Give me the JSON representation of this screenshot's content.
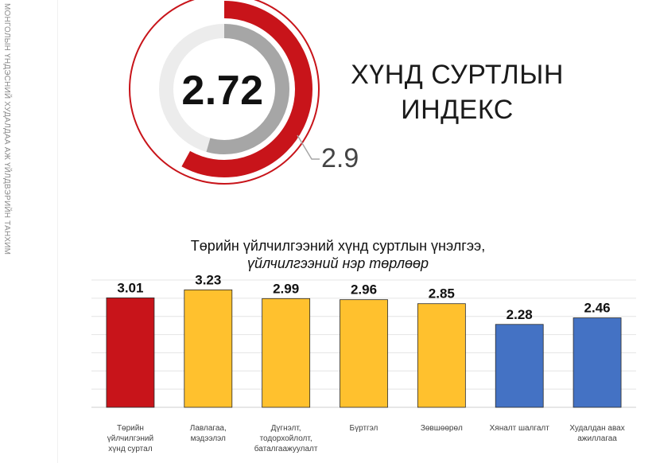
{
  "sidebar": {
    "text": "МОНГОЛЫН ҮНДЭСНИЙ ХУДАЛДАА АЖ ҮЙЛДВЭРИЙН ТАНХИМ"
  },
  "index": {
    "title_line1": "ХҮНД СУРТЛЫН",
    "title_line2": "ИНДЕКС",
    "value": "2.72",
    "reference": "2.9",
    "colors": {
      "value": "#a6a6a6",
      "reference": "#c8141a"
    }
  },
  "chart_data": {
    "type": "bar",
    "title": "Төрийн үйлчилгээний хүнд суртлын үнэлгээ,",
    "subtitle": "үйлчилгээний нэр төрлөөр",
    "categories": [
      "Төрийн үйлчилгээний хүнд суртал",
      "Лавлагаа, мэдээлэл",
      "Дүгнэлт, тодорхойлолт, баталгаажуулалт",
      "Бүртгэл",
      "Зөвшөөрөл",
      "Хяналт шалгалт",
      "Худалдан авах ажиллагаа"
    ],
    "category_lines": [
      [
        "Төрийн",
        "үйлчилгэний",
        "хүнд суртал"
      ],
      [
        "Лавлагаа,",
        "мэдээлэл"
      ],
      [
        "Дүгнэлт,",
        "тодорхойлолт,",
        "баталгаажуулалт"
      ],
      [
        "Бүртгэл"
      ],
      [
        "Зөвшөөрөл"
      ],
      [
        "Хяналт шалгалт"
      ],
      [
        "Худалдан авах",
        "ажиллагаа"
      ]
    ],
    "values": [
      3.01,
      3.23,
      2.99,
      2.96,
      2.85,
      2.28,
      2.46
    ],
    "value_labels": [
      "3.01",
      "3.23",
      "2.99",
      "2.96",
      "2.85",
      "2.28",
      "2.46"
    ],
    "colors": [
      "#c8141a",
      "#ffc12e",
      "#ffc12e",
      "#ffc12e",
      "#ffc12e",
      "#4472c4",
      "#4472c4"
    ],
    "ylim": [
      0,
      3.5
    ],
    "grid": true,
    "xlabel": "",
    "ylabel": ""
  }
}
